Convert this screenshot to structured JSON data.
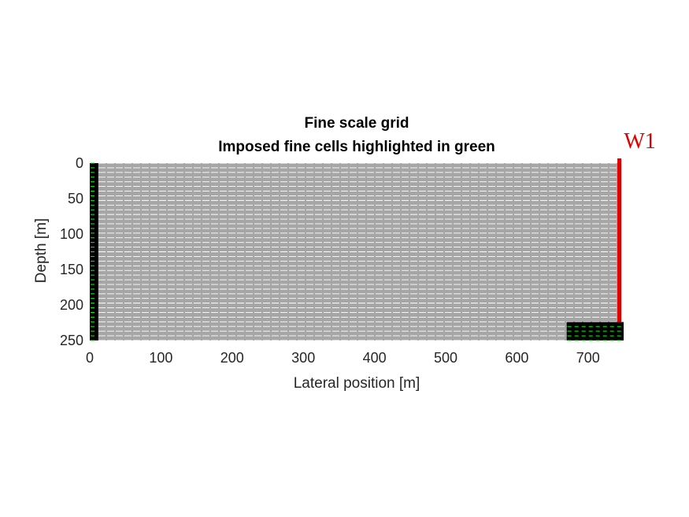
{
  "chart_data": {
    "type": "grid",
    "title": [
      "Fine scale grid",
      "Imposed fine cells highlighted in green"
    ],
    "xlabel": "Lateral position [m]",
    "ylabel": "Depth [m]",
    "xlim": [
      0,
      750
    ],
    "ylim": [
      0,
      250
    ],
    "y_reversed": true,
    "xticks": [
      0,
      100,
      200,
      300,
      400,
      500,
      600,
      700
    ],
    "yticks": [
      0,
      50,
      100,
      150,
      200,
      250
    ],
    "grid_extent": {
      "x": [
        0,
        745
      ],
      "y": [
        0,
        250
      ]
    },
    "layers": 38,
    "colors": {
      "background_cells": "#a6a6a6",
      "cell_lines": "#ffffff",
      "imposed_cells": "#000000",
      "imposed_cell_lines": "#00ff00",
      "well": "#e00000"
    },
    "imposed_regions": [
      {
        "x": [
          0,
          12
        ],
        "y": [
          0,
          250
        ]
      },
      {
        "x": [
          670,
          750
        ],
        "y": [
          224,
          250
        ]
      }
    ],
    "well": {
      "name": "W1",
      "x": 744,
      "y": [
        0,
        224
      ]
    }
  }
}
